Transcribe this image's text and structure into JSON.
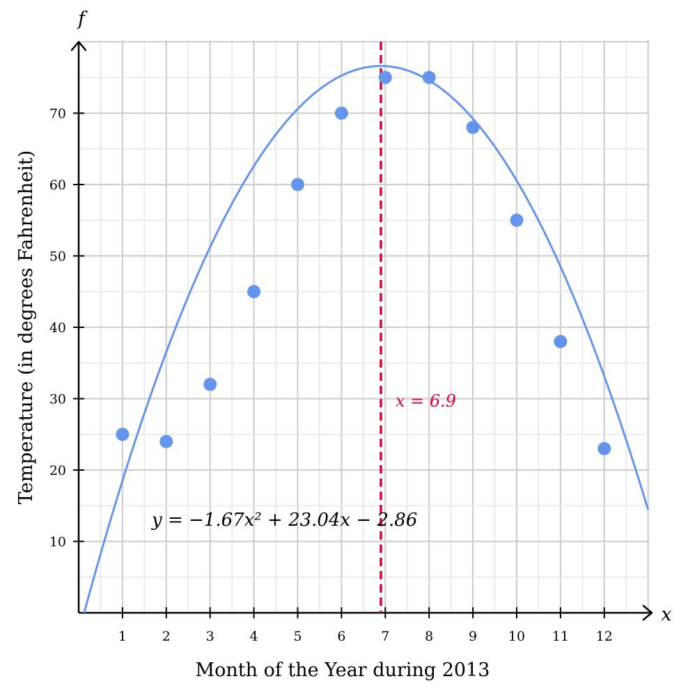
{
  "chart_data": {
    "type": "scatter",
    "x_axis_letter": "x",
    "y_axis_letter": "f",
    "xlabel": "Month of the Year during 2013",
    "ylabel": "Temperature (in degrees Fahrenheit)",
    "xlim": [
      0,
      13
    ],
    "ylim": [
      0,
      80
    ],
    "x_ticks": [
      1,
      2,
      3,
      4,
      5,
      6,
      7,
      8,
      9,
      10,
      11,
      12
    ],
    "y_ticks": [
      10,
      20,
      30,
      40,
      50,
      60,
      70
    ],
    "grid": true,
    "points": [
      {
        "x": 1,
        "y": 25
      },
      {
        "x": 2,
        "y": 24
      },
      {
        "x": 3,
        "y": 32
      },
      {
        "x": 4,
        "y": 45
      },
      {
        "x": 5,
        "y": 60
      },
      {
        "x": 6,
        "y": 70
      },
      {
        "x": 7,
        "y": 75
      },
      {
        "x": 8,
        "y": 75
      },
      {
        "x": 9,
        "y": 68
      },
      {
        "x": 10,
        "y": 55
      },
      {
        "x": 11,
        "y": 38
      },
      {
        "x": 12,
        "y": 23
      }
    ],
    "fit_curve": {
      "label": "y = −1.67x² + 23.04x − 2.86",
      "coefficients": {
        "a": -1.67,
        "b": 23.04,
        "c": -2.86
      }
    },
    "vertical_line": {
      "x": 6.9,
      "label": "x = 6.9"
    },
    "colors": {
      "points": "#6495ED",
      "curve": "#6495ED",
      "vertical_line": "#DF0030",
      "grid": "#d4d4d4",
      "axes": "#000000"
    }
  }
}
